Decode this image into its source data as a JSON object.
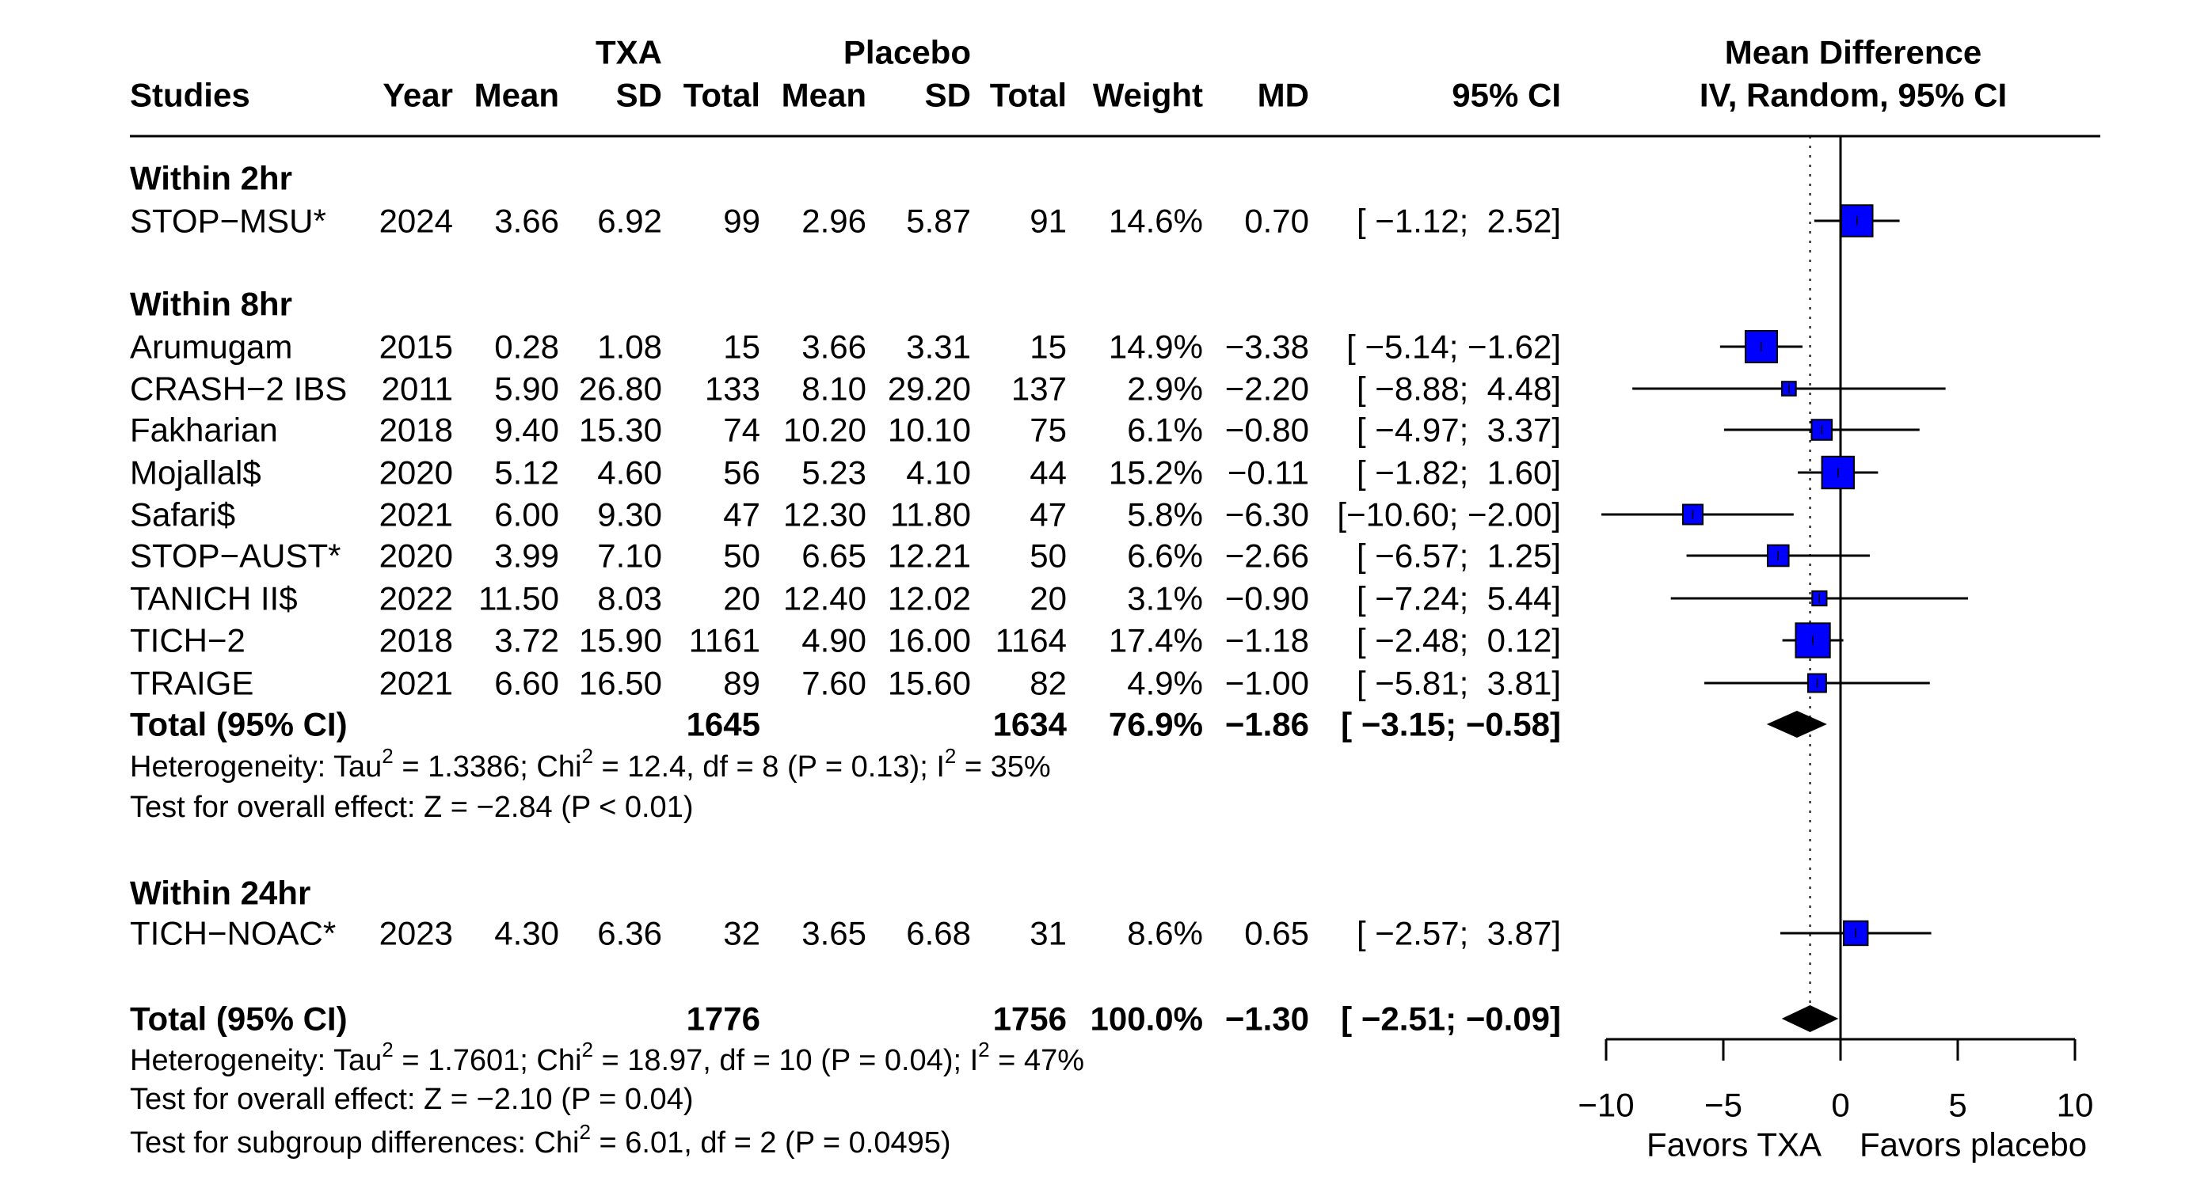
{
  "header": {
    "txa": "TXA",
    "placebo": "Placebo",
    "md_title": "Mean Difference",
    "md_sub": "IV, Random, 95% CI",
    "columns": [
      "Studies",
      "Year",
      "Mean",
      "SD",
      "Total",
      "Mean",
      "SD",
      "Total",
      "Weight",
      "MD",
      "95% CI"
    ]
  },
  "chart_data": {
    "type": "forest",
    "title": "Mean Difference IV, Random, 95% CI",
    "xlim": [
      -10,
      10
    ],
    "ticks": [
      "−10",
      "−5",
      "0",
      "5",
      "10"
    ],
    "tick_values": [
      -10,
      -5,
      0,
      5,
      10
    ],
    "left_label": "Favors TXA",
    "right_label": "Favors placebo",
    "reference_line": 0,
    "pooled_line": -1.3,
    "groups": [
      {
        "label": "Within 2hr",
        "studies": [
          {
            "name": "STOP−MSU*",
            "year": "2024",
            "txa_mean": "3.66",
            "txa_sd": "6.92",
            "txa_total": "99",
            "pl_mean": "2.96",
            "pl_sd": "5.87",
            "pl_total": "91",
            "weight_label": "14.6%",
            "weight": 14.6,
            "md_label": "0.70",
            "md": 0.7,
            "ci_label": "[ −1.12;  2.52]",
            "lo": -1.12,
            "hi": 2.52
          }
        ]
      },
      {
        "label": "Within 8hr",
        "studies": [
          {
            "name": "Arumugam",
            "year": "2015",
            "txa_mean": "0.28",
            "txa_sd": "1.08",
            "txa_total": "15",
            "pl_mean": "3.66",
            "pl_sd": "3.31",
            "pl_total": "15",
            "weight_label": "14.9%",
            "weight": 14.9,
            "md_label": "−3.38",
            "md": -3.38,
            "ci_label": "[ −5.14; −1.62]",
            "lo": -5.14,
            "hi": -1.62
          },
          {
            "name": "CRASH−2 IBS",
            "year": "2011",
            "txa_mean": "5.90",
            "txa_sd": "26.80",
            "txa_total": "133",
            "pl_mean": "8.10",
            "pl_sd": "29.20",
            "pl_total": "137",
            "weight_label": "2.9%",
            "weight": 2.9,
            "md_label": "−2.20",
            "md": -2.2,
            "ci_label": "[ −8.88;  4.48]",
            "lo": -8.88,
            "hi": 4.48
          },
          {
            "name": "Fakharian",
            "year": "2018",
            "txa_mean": "9.40",
            "txa_sd": "15.30",
            "txa_total": "74",
            "pl_mean": "10.20",
            "pl_sd": "10.10",
            "pl_total": "75",
            "weight_label": "6.1%",
            "weight": 6.1,
            "md_label": "−0.80",
            "md": -0.8,
            "ci_label": "[ −4.97;  3.37]",
            "lo": -4.97,
            "hi": 3.37
          },
          {
            "name": "Mojallal$",
            "year": "2020",
            "txa_mean": "5.12",
            "txa_sd": "4.60",
            "txa_total": "56",
            "pl_mean": "5.23",
            "pl_sd": "4.10",
            "pl_total": "44",
            "weight_label": "15.2%",
            "weight": 15.2,
            "md_label": "−0.11",
            "md": -0.11,
            "ci_label": "[ −1.82;  1.60]",
            "lo": -1.82,
            "hi": 1.6
          },
          {
            "name": "Safari$",
            "year": "2021",
            "txa_mean": "6.00",
            "txa_sd": "9.30",
            "txa_total": "47",
            "pl_mean": "12.30",
            "pl_sd": "11.80",
            "pl_total": "47",
            "weight_label": "5.8%",
            "weight": 5.8,
            "md_label": "−6.30",
            "md": -6.3,
            "ci_label": "[−10.60; −2.00]",
            "lo": -10.6,
            "hi": -2.0
          },
          {
            "name": "STOP−AUST*",
            "year": "2020",
            "txa_mean": "3.99",
            "txa_sd": "7.10",
            "txa_total": "50",
            "pl_mean": "6.65",
            "pl_sd": "12.21",
            "pl_total": "50",
            "weight_label": "6.6%",
            "weight": 6.6,
            "md_label": "−2.66",
            "md": -2.66,
            "ci_label": "[ −6.57;  1.25]",
            "lo": -6.57,
            "hi": 1.25
          },
          {
            "name": "TANICH II$",
            "year": "2022",
            "txa_mean": "11.50",
            "txa_sd": "8.03",
            "txa_total": "20",
            "pl_mean": "12.40",
            "pl_sd": "12.02",
            "pl_total": "20",
            "weight_label": "3.1%",
            "weight": 3.1,
            "md_label": "−0.90",
            "md": -0.9,
            "ci_label": "[ −7.24;  5.44]",
            "lo": -7.24,
            "hi": 5.44
          },
          {
            "name": "TICH−2",
            "year": "2018",
            "txa_mean": "3.72",
            "txa_sd": "15.90",
            "txa_total": "1161",
            "pl_mean": "4.90",
            "pl_sd": "16.00",
            "pl_total": "1164",
            "weight_label": "17.4%",
            "weight": 17.4,
            "md_label": "−1.18",
            "md": -1.18,
            "ci_label": "[ −2.48;  0.12]",
            "lo": -2.48,
            "hi": 0.12
          },
          {
            "name": "TRAIGE",
            "year": "2021",
            "txa_mean": "6.60",
            "txa_sd": "16.50",
            "txa_total": "89",
            "pl_mean": "7.60",
            "pl_sd": "15.60",
            "pl_total": "82",
            "weight_label": "4.9%",
            "weight": 4.9,
            "md_label": "−1.00",
            "md": -1.0,
            "ci_label": "[ −5.81;  3.81]",
            "lo": -5.81,
            "hi": 3.81
          }
        ],
        "total": {
          "label": "Total (95% CI)",
          "txa_total": "1645",
          "pl_total": "1634",
          "weight_label": "76.9%",
          "md_label": "−1.86",
          "md": -1.86,
          "ci_label": "[ −3.15; −0.58]",
          "lo": -3.15,
          "hi": -0.58
        },
        "heterogeneity": [
          "Heterogeneity: Tau",
          "2",
          " = 1.3386; Chi",
          "2",
          " = 12.4, df = 8 (P = 0.13); I",
          "2",
          " = 35%"
        ],
        "overall_effect": "Test for overall effect: Z = −2.84 (P < 0.01)"
      },
      {
        "label": "Within 24hr",
        "studies": [
          {
            "name": "TICH−NOAC*",
            "year": "2023",
            "txa_mean": "4.30",
            "txa_sd": "6.36",
            "txa_total": "32",
            "pl_mean": "3.65",
            "pl_sd": "6.68",
            "pl_total": "31",
            "weight_label": "8.6%",
            "weight": 8.6,
            "md_label": "0.65",
            "md": 0.65,
            "ci_label": "[ −2.57;  3.87]",
            "lo": -2.57,
            "hi": 3.87
          }
        ]
      }
    ],
    "overall": {
      "label": "Total (95% CI)",
      "txa_total": "1776",
      "pl_total": "1756",
      "weight_label": "100.0%",
      "md_label": "−1.30",
      "md": -1.3,
      "ci_label": "[ −2.51; −0.09]",
      "lo": -2.51,
      "hi": -0.09
    },
    "overall_heterogeneity": [
      "Heterogeneity: Tau",
      "2",
      " = 1.7601; Chi",
      "2",
      " = 18.97, df = 10 (P = 0.04); I",
      "2",
      " = 47%"
    ],
    "overall_effect": "Test for overall effect: Z = −2.10 (P = 0.04)",
    "subgroup_test": [
      "Test for subgroup differences: Chi",
      "2",
      " = 6.01, df = 2 (P = 0.0495)"
    ],
    "colors": {
      "box": "#0000FF",
      "line": "#000000"
    }
  }
}
